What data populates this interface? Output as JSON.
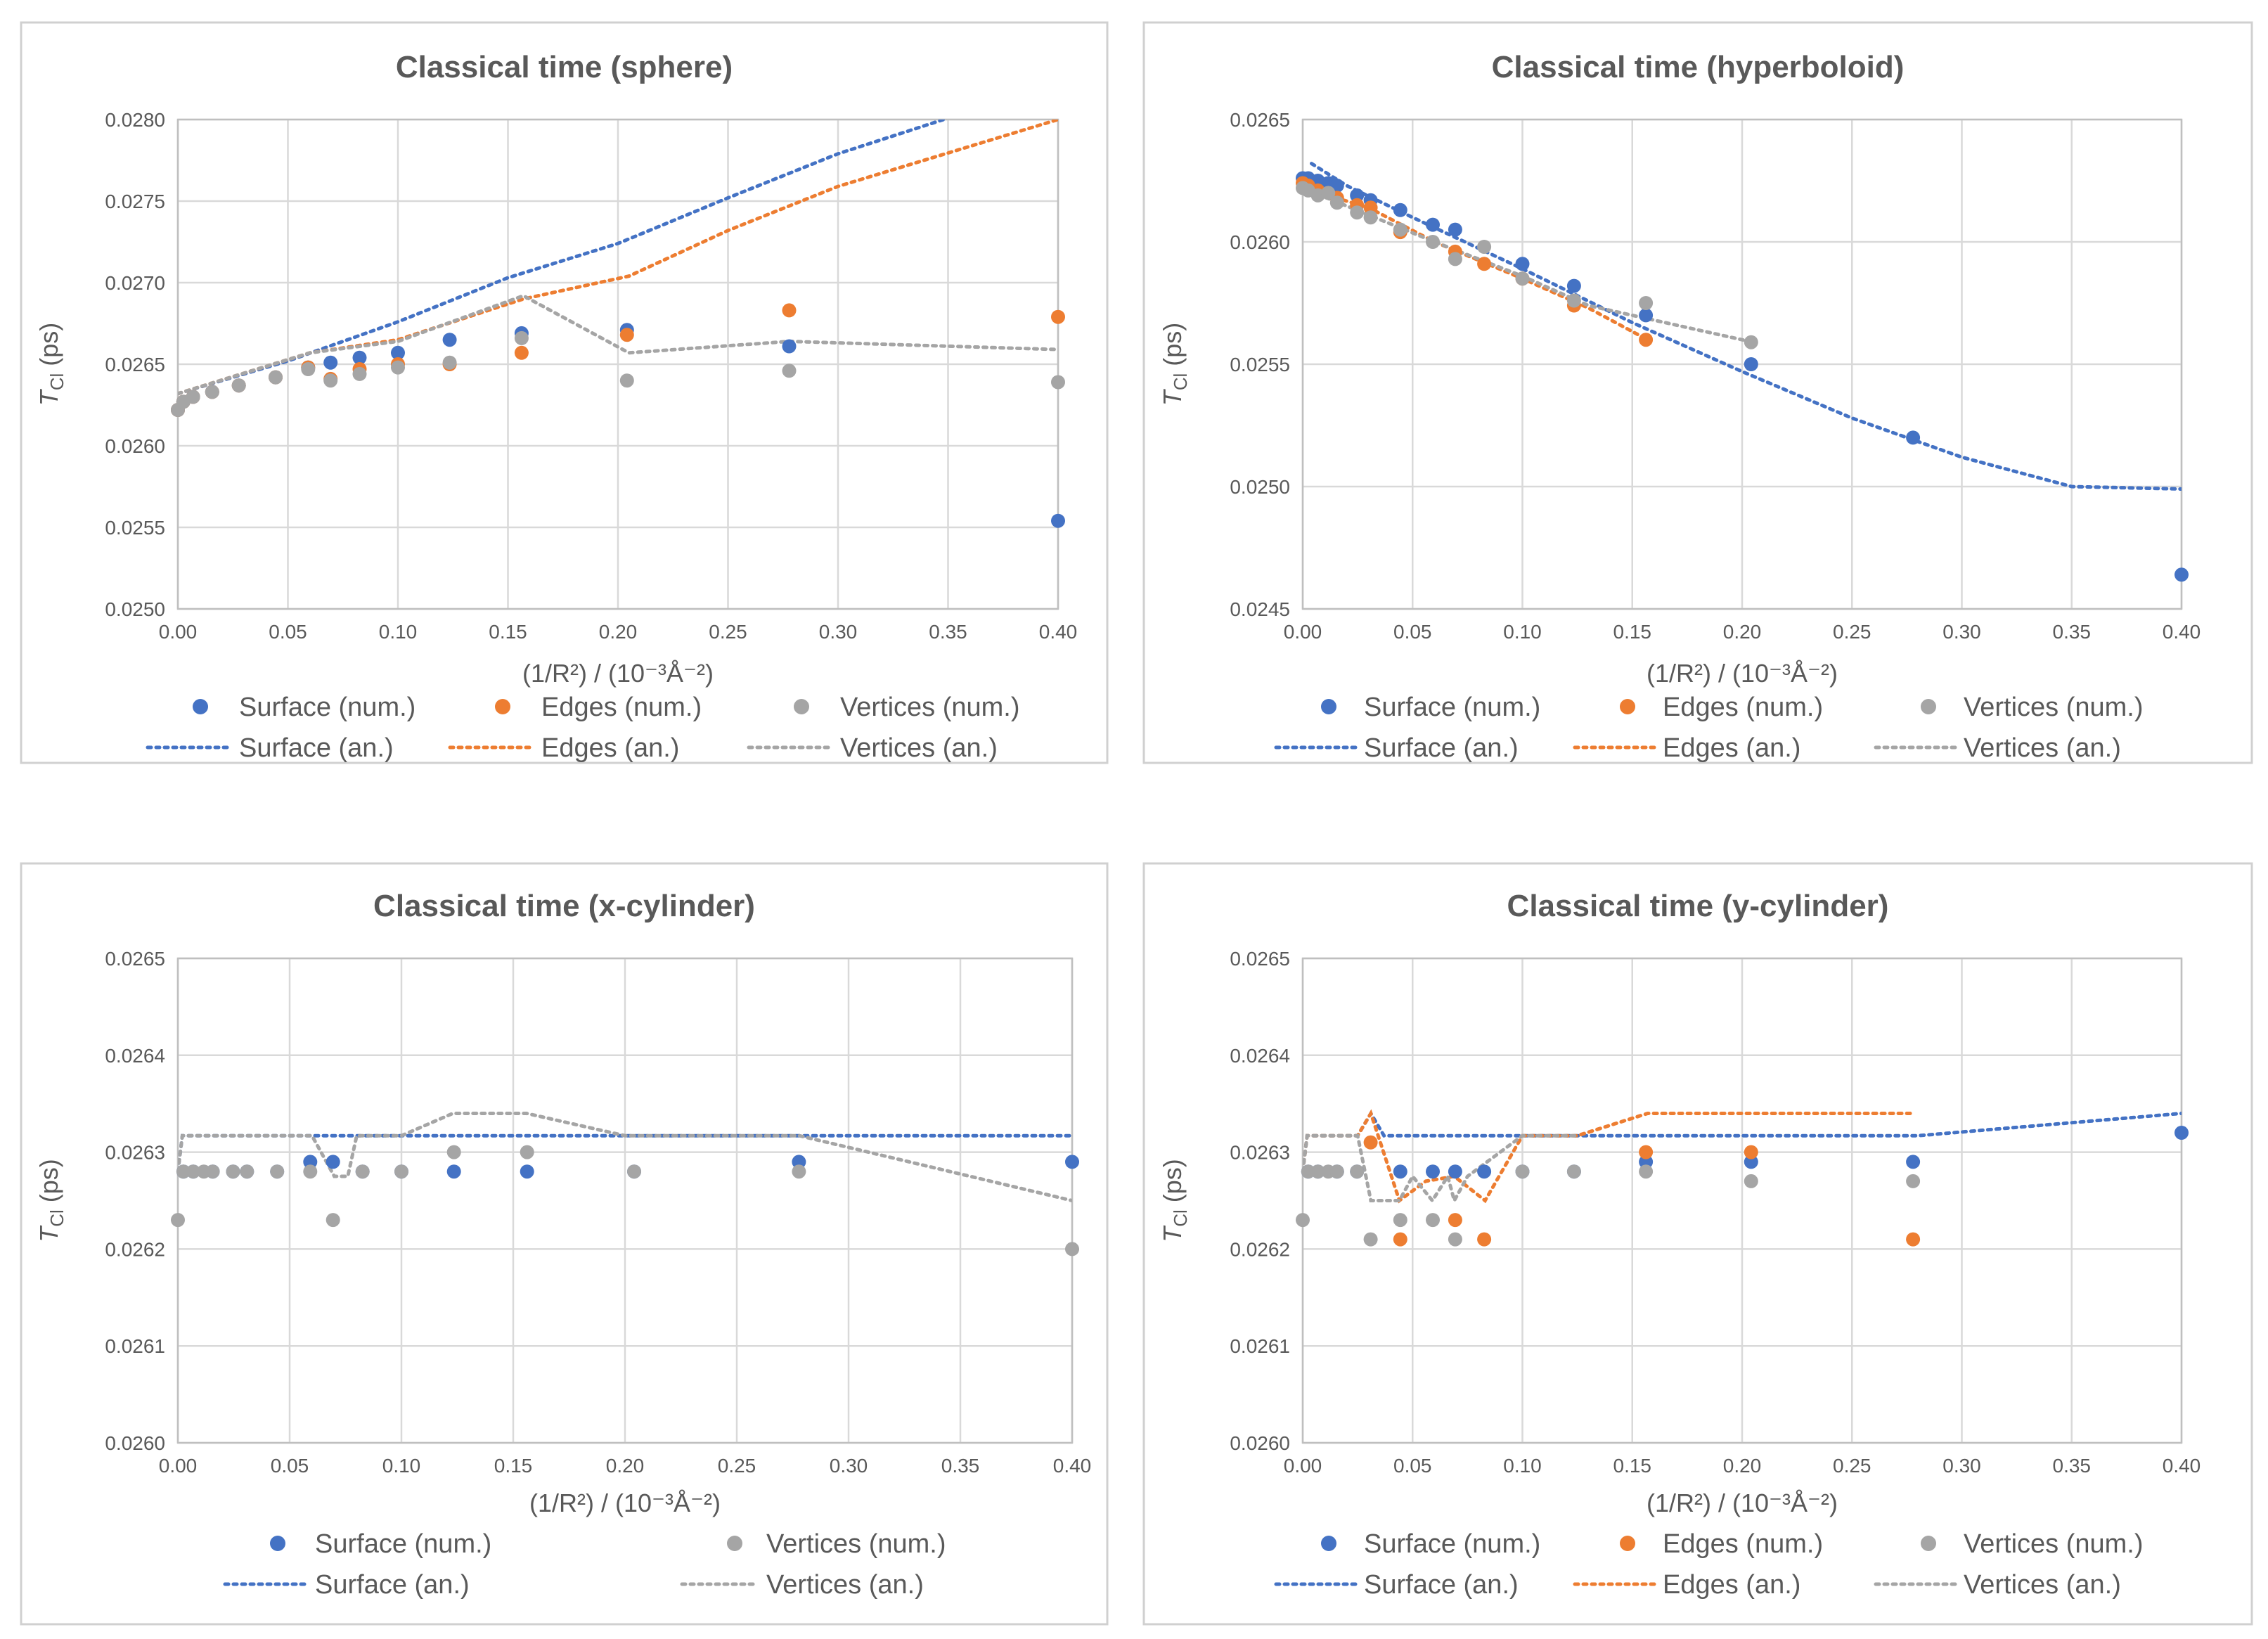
{
  "chart_data": [
    {
      "type": "scatter",
      "title": "Classical time (sphere)",
      "ylabel": "T_Cl (ps)",
      "xlabel": "(1/R²) / (10⁻³Å⁻²)",
      "xlim": [
        0,
        0.4
      ],
      "ylim": [
        0.025,
        0.028
      ],
      "xticks": [
        "0.00",
        "0.05",
        "0.10",
        "0.15",
        "0.20",
        "0.25",
        "0.30",
        "0.35",
        "0.40"
      ],
      "yticks": [
        "0.0250",
        "0.0255",
        "0.0260",
        "0.0265",
        "0.0270",
        "0.0275",
        "0.0280"
      ],
      "legend": {
        "row1": [
          "Surface (num.)",
          "Edges (num.)",
          "Vertices (num.)"
        ],
        "row2": [
          "Surface (an.)",
          "Edges (an.)",
          "Vertices (an.)"
        ]
      },
      "series": [
        {
          "name": "Surface (num.)",
          "kind": "scatter",
          "color": "#4472C4",
          "x": [
            0.0,
            0.0025,
            0.0069,
            0.0156,
            0.0277,
            0.0444,
            0.0592,
            0.0694,
            0.0826,
            0.1,
            0.1235,
            0.1562,
            0.2041,
            0.2778,
            0.4
          ],
          "y": [
            0.02622,
            0.02627,
            0.0263,
            0.02633,
            0.02637,
            0.02642,
            0.02648,
            0.02651,
            0.02654,
            0.02657,
            0.02665,
            0.02669,
            0.02671,
            0.02661,
            0.02554
          ]
        },
        {
          "name": "Edges (num.)",
          "kind": "scatter",
          "color": "#ED7D31",
          "x": [
            0.0,
            0.0025,
            0.0069,
            0.0156,
            0.0277,
            0.0444,
            0.0592,
            0.0694,
            0.0826,
            0.1,
            0.1235,
            0.1562,
            0.2041,
            0.2778,
            0.4
          ],
          "y": [
            0.02622,
            0.02627,
            0.0263,
            0.02633,
            0.02637,
            0.02642,
            0.02648,
            0.02641,
            0.02647,
            0.0265,
            0.0265,
            0.02657,
            0.02668,
            0.02683,
            0.02679
          ]
        },
        {
          "name": "Vertices (num.)",
          "kind": "scatter",
          "color": "#A5A5A5",
          "x": [
            0.0,
            0.0025,
            0.0069,
            0.0156,
            0.0277,
            0.0444,
            0.0592,
            0.0694,
            0.0826,
            0.1,
            0.1235,
            0.1562,
            0.2041,
            0.2778,
            0.4
          ],
          "y": [
            0.02622,
            0.02627,
            0.0263,
            0.02633,
            0.02637,
            0.02642,
            0.02647,
            0.0264,
            0.02644,
            0.02648,
            0.02651,
            0.02666,
            0.0264,
            0.02646,
            0.02639
          ]
        },
        {
          "name": "Surface (an.)",
          "kind": "line",
          "color": "#4472C4",
          "x": [
            0.0,
            0.05,
            0.1,
            0.15,
            0.2,
            0.25,
            0.3,
            0.348
          ],
          "y": [
            0.02632,
            0.02652,
            0.02676,
            0.02703,
            0.02724,
            0.02752,
            0.02779,
            0.028
          ]
        },
        {
          "name": "Edges (an.)",
          "kind": "line",
          "color": "#ED7D31",
          "x": [
            0.0,
            0.06,
            0.1,
            0.157,
            0.205,
            0.25,
            0.3,
            0.4
          ],
          "y": [
            0.02632,
            0.02657,
            0.02665,
            0.0269,
            0.02704,
            0.02732,
            0.02759,
            0.028
          ]
        },
        {
          "name": "Vertices (an.)",
          "kind": "line",
          "color": "#A5A5A5",
          "x": [
            0.0,
            0.06,
            0.1,
            0.157,
            0.205,
            0.278,
            0.4
          ],
          "y": [
            0.02632,
            0.02657,
            0.02664,
            0.02692,
            0.02657,
            0.02664,
            0.02659
          ]
        }
      ]
    },
    {
      "type": "scatter",
      "title": "Classical time (hyperboloid)",
      "ylabel": "T_Cl (ps)",
      "xlabel": "(1/R²) / (10⁻³Å⁻²)",
      "xlim": [
        0,
        0.4
      ],
      "ylim": [
        0.0245,
        0.0265
      ],
      "xticks": [
        "0.00",
        "0.05",
        "0.10",
        "0.15",
        "0.20",
        "0.25",
        "0.30",
        "0.35",
        "0.40"
      ],
      "yticks": [
        "0.0245",
        "0.0250",
        "0.0255",
        "0.0260",
        "0.0265"
      ],
      "legend": {
        "row1": [
          "Surface (num.)",
          "Edges (num.)",
          "Vertices (num.)"
        ],
        "row2": [
          "Surface (an.)",
          "Edges (an.)",
          "Vertices (an.)"
        ]
      },
      "series": [
        {
          "name": "Surface (num.)",
          "kind": "scatter",
          "color": "#4472C4",
          "x": [
            0.0,
            0.0025,
            0.0069,
            0.0116,
            0.0156,
            0.0247,
            0.0309,
            0.0444,
            0.0592,
            0.0694,
            0.1,
            0.1235,
            0.1562,
            0.2041,
            0.2778,
            0.4
          ],
          "y": [
            0.02626,
            0.02626,
            0.02625,
            0.02624,
            0.02623,
            0.02619,
            0.02617,
            0.02613,
            0.02607,
            0.02605,
            0.02591,
            0.02582,
            0.0257,
            0.0255,
            0.0252,
            0.02464
          ]
        },
        {
          "name": "Edges (num.)",
          "kind": "scatter",
          "color": "#ED7D31",
          "x": [
            0.0,
            0.0025,
            0.0069,
            0.0156,
            0.0247,
            0.0309,
            0.0444,
            0.0694,
            0.0826,
            0.1,
            0.1235,
            0.1562
          ],
          "y": [
            0.02624,
            0.02623,
            0.02621,
            0.02618,
            0.02615,
            0.02614,
            0.02604,
            0.02596,
            0.02591,
            0.02585,
            0.02574,
            0.0256
          ]
        },
        {
          "name": "Vertices (num.)",
          "kind": "scatter",
          "color": "#A5A5A5",
          "x": [
            0.0,
            0.0025,
            0.0069,
            0.0116,
            0.0156,
            0.0247,
            0.0309,
            0.0444,
            0.0592,
            0.0694,
            0.0826,
            0.1,
            0.1235,
            0.1562,
            0.2041
          ],
          "y": [
            0.02622,
            0.02621,
            0.02619,
            0.0262,
            0.02616,
            0.02612,
            0.0261,
            0.02605,
            0.026,
            0.02593,
            0.02598,
            0.02585,
            0.02576,
            0.02575,
            0.02559
          ]
        },
        {
          "name": "Surface (an.)",
          "kind": "line",
          "color": "#4472C4",
          "x": [
            0.004,
            0.02,
            0.05,
            0.1,
            0.15,
            0.2,
            0.25,
            0.3,
            0.35,
            0.4
          ],
          "y": [
            0.02632,
            0.02623,
            0.0261,
            0.02589,
            0.02567,
            0.02547,
            0.02528,
            0.02512,
            0.025,
            0.02499
          ]
        },
        {
          "name": "Edges (an.)",
          "kind": "line",
          "color": "#ED7D31",
          "x": [
            0.0,
            0.03,
            0.06,
            0.1,
            0.13,
            0.157
          ],
          "y": [
            0.02622,
            0.02614,
            0.026,
            0.02585,
            0.02573,
            0.0256
          ]
        },
        {
          "name": "Vertices (an.)",
          "kind": "line",
          "color": "#A5A5A5",
          "x": [
            0.0,
            0.03,
            0.06,
            0.1,
            0.13,
            0.205
          ],
          "y": [
            0.02622,
            0.02611,
            0.026,
            0.02586,
            0.02574,
            0.02559
          ]
        }
      ]
    },
    {
      "type": "scatter",
      "title": "Classical time (x-cylinder)",
      "ylabel": "T_Cl (ps)",
      "xlabel": "(1/R²) / (10⁻³Å⁻²)",
      "xlim": [
        0,
        0.4
      ],
      "ylim": [
        0.026,
        0.0265
      ],
      "xticks": [
        "0.00",
        "0.05",
        "0.10",
        "0.15",
        "0.20",
        "0.25",
        "0.30",
        "0.35",
        "0.40"
      ],
      "yticks": [
        "0.0260",
        "0.0261",
        "0.0262",
        "0.0263",
        "0.0264",
        "0.0265"
      ],
      "legend": {
        "row1": [
          "Surface (num.)",
          "Vertices (num.)"
        ],
        "row2": [
          "Surface (an.)",
          "Vertices (an.)"
        ]
      },
      "series": [
        {
          "name": "Surface (num.)",
          "kind": "scatter",
          "color": "#4472C4",
          "x": [
            0.0025,
            0.0069,
            0.0156,
            0.0247,
            0.0309,
            0.0444,
            0.0592,
            0.0694,
            0.0826,
            0.1,
            0.1235,
            0.1562,
            0.2041,
            0.2778,
            0.4
          ],
          "y": [
            0.02628,
            0.02628,
            0.02628,
            0.02628,
            0.02628,
            0.02628,
            0.02629,
            0.02629,
            0.02628,
            0.02628,
            0.02628,
            0.02628,
            0.02628,
            0.02629,
            0.02629
          ]
        },
        {
          "name": "Vertices (num.)",
          "kind": "scatter",
          "color": "#A5A5A5",
          "x": [
            0.0,
            0.0025,
            0.0069,
            0.0116,
            0.0156,
            0.0247,
            0.0309,
            0.0444,
            0.0592,
            0.0694,
            0.0826,
            0.1,
            0.1235,
            0.1562,
            0.2041,
            0.2778,
            0.4
          ],
          "y": [
            0.02623,
            0.02628,
            0.02628,
            0.02628,
            0.02628,
            0.02628,
            0.02628,
            0.02628,
            0.02628,
            0.02623,
            0.02628,
            0.02628,
            0.0263,
            0.0263,
            0.02628,
            0.02628,
            0.0262
          ]
        },
        {
          "name": "Surface (an.)",
          "kind": "line",
          "color": "#4472C4",
          "x": [
            0.0,
            0.002,
            0.4
          ],
          "y": [
            0.02628,
            0.026317,
            0.026317
          ]
        },
        {
          "name": "Vertices (an.)",
          "kind": "line",
          "color": "#A5A5A5",
          "x": [
            0.0,
            0.002,
            0.06,
            0.07,
            0.076,
            0.08,
            0.1,
            0.123,
            0.156,
            0.2,
            0.278,
            0.4
          ],
          "y": [
            0.02628,
            0.026317,
            0.026317,
            0.026275,
            0.026275,
            0.026317,
            0.026317,
            0.02634,
            0.02634,
            0.026317,
            0.026317,
            0.02625
          ]
        }
      ]
    },
    {
      "type": "scatter",
      "title": "Classical time (y-cylinder)",
      "ylabel": "T_Cl (ps)",
      "xlabel": "(1/R²) / (10⁻³Å⁻²)",
      "xlim": [
        0,
        0.4
      ],
      "ylim": [
        0.026,
        0.0265
      ],
      "xticks": [
        "0.00",
        "0.05",
        "0.10",
        "0.15",
        "0.20",
        "0.25",
        "0.30",
        "0.35",
        "0.40"
      ],
      "yticks": [
        "0.0260",
        "0.0261",
        "0.0262",
        "0.0263",
        "0.0264",
        "0.0265"
      ],
      "legend": {
        "row1": [
          "Surface (num.)",
          "Edges (num.)",
          "Vertices (num.)"
        ],
        "row2": [
          "Surface (an.)",
          "Edges (an.)",
          "Vertices (an.)"
        ]
      },
      "series": [
        {
          "name": "Surface (num.)",
          "kind": "scatter",
          "color": "#4472C4",
          "x": [
            0.0025,
            0.0069,
            0.0156,
            0.0247,
            0.0444,
            0.0592,
            0.0694,
            0.0826,
            0.1,
            0.1235,
            0.1562,
            0.2041,
            0.2778,
            0.4
          ],
          "y": [
            0.02628,
            0.02628,
            0.02628,
            0.02628,
            0.02628,
            0.02628,
            0.02628,
            0.02628,
            0.02628,
            0.02628,
            0.02629,
            0.02629,
            0.02629,
            0.02632
          ]
        },
        {
          "name": "Edges (num.)",
          "kind": "scatter",
          "color": "#ED7D31",
          "x": [
            0.0309,
            0.0444,
            0.0694,
            0.0826,
            0.1562,
            0.2041,
            0.2778
          ],
          "y": [
            0.02631,
            0.02621,
            0.02623,
            0.02621,
            0.0263,
            0.0263,
            0.02621
          ]
        },
        {
          "name": "Vertices (num.)",
          "kind": "scatter",
          "color": "#A5A5A5",
          "x": [
            0.0,
            0.0025,
            0.0069,
            0.0116,
            0.0156,
            0.0247,
            0.0309,
            0.0444,
            0.0592,
            0.0694,
            0.1,
            0.1235,
            0.1562,
            0.2041,
            0.2778
          ],
          "y": [
            0.02623,
            0.02628,
            0.02628,
            0.02628,
            0.02628,
            0.02628,
            0.02621,
            0.02623,
            0.02623,
            0.02621,
            0.02628,
            0.02628,
            0.02628,
            0.02627,
            0.02627
          ]
        },
        {
          "name": "Surface (an.)",
          "kind": "line",
          "color": "#4472C4",
          "x": [
            0.0,
            0.002,
            0.025,
            0.031,
            0.037,
            0.1,
            0.28,
            0.4
          ],
          "y": [
            0.02628,
            0.026317,
            0.026317,
            0.02634,
            0.026317,
            0.026317,
            0.026317,
            0.02634
          ]
        },
        {
          "name": "Edges (an.)",
          "kind": "line",
          "color": "#ED7D31",
          "x": [
            0.0,
            0.002,
            0.025,
            0.031,
            0.044,
            0.056,
            0.069,
            0.083,
            0.1,
            0.125,
            0.157,
            0.2,
            0.278
          ],
          "y": [
            0.02628,
            0.026317,
            0.026317,
            0.02634,
            0.02625,
            0.02627,
            0.026275,
            0.02625,
            0.026317,
            0.026317,
            0.02634,
            0.02634,
            0.02634
          ]
        },
        {
          "name": "Vertices (an.)",
          "kind": "line",
          "color": "#A5A5A5",
          "x": [
            0.0,
            0.002,
            0.025,
            0.031,
            0.044,
            0.05,
            0.059,
            0.066,
            0.069,
            0.075,
            0.1,
            0.125
          ],
          "y": [
            0.02628,
            0.026317,
            0.026317,
            0.02625,
            0.02625,
            0.026275,
            0.02625,
            0.026275,
            0.02625,
            0.026275,
            0.026317,
            0.026317
          ]
        }
      ]
    }
  ]
}
